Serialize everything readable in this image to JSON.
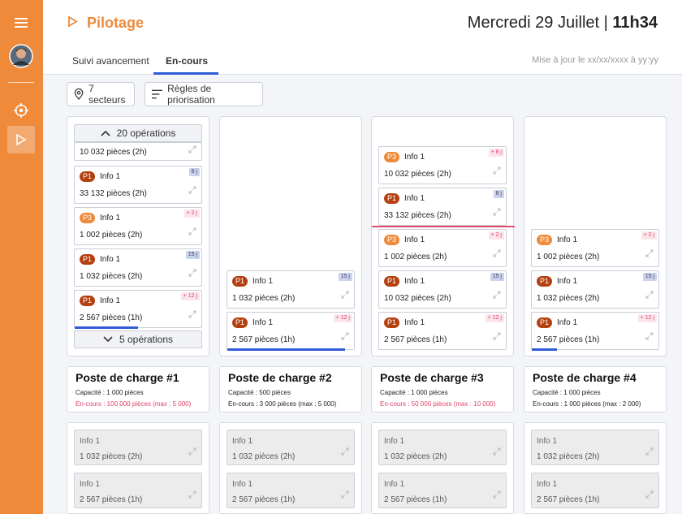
{
  "sidebar": {
    "items": [
      {
        "name": "menu-icon"
      },
      {
        "name": "avatar"
      },
      {
        "name": "target-icon"
      },
      {
        "name": "play-icon",
        "active": true
      }
    ]
  },
  "header": {
    "title": "Pilotage",
    "date": "Mercredi 29 Juillet | ",
    "time": "11h34",
    "tabs": [
      "Suivi avancement",
      "En-cours"
    ],
    "active_tab": "En-cours",
    "update_text": "Mise à jour le xx/xx/xxxx à yy:yy"
  },
  "filters": {
    "sectors": "7 secteurs",
    "rules": "Règles de priorisation"
  },
  "columns": [
    {
      "collapse_top": "20 opérations",
      "summary": "10 032 pièces (2h)",
      "cards": [
        {
          "priority": "P1",
          "info": "Info 1",
          "qty": "33 132 pièces (2h)",
          "tag": "8 j",
          "tag_type": "blue"
        },
        {
          "priority": "P3",
          "info": "Info 1",
          "qty": "1 002 pièces (2h)",
          "tag": "+ 2 j",
          "tag_type": "pink"
        },
        {
          "priority": "P1",
          "info": "Info 1",
          "qty": "1 032 pièces (2h)",
          "tag": "15 j",
          "tag_type": "blue"
        },
        {
          "priority": "P1",
          "info": "Info 1",
          "qty": "2 567 pièces (1h)",
          "tag": "+ 12 j",
          "tag_type": "pink",
          "progress": 0.5
        }
      ],
      "collapse_bottom": "5 opérations"
    },
    {
      "cards": [
        {
          "priority": "P1",
          "info": "Info 1",
          "qty": "1 032 pièces (2h)",
          "tag": "15 j",
          "tag_type": "blue"
        },
        {
          "priority": "P1",
          "info": "Info 1",
          "qty": "2 567 pièces (1h)",
          "tag": "+ 12 j",
          "tag_type": "pink",
          "progress": 0.93
        }
      ]
    },
    {
      "cards": [
        {
          "priority": "P3",
          "info": "Info 1",
          "qty": "10 032 pièces (2h)",
          "tag": "+ 8 j",
          "tag_type": "pink"
        },
        {
          "priority": "P1",
          "info": "Info 1",
          "qty": "33 132 pièces (2h)",
          "tag": "8 j",
          "tag_type": "blue"
        },
        {
          "priority": "P3",
          "info": "Info 1",
          "qty": "1 002 pièces (2h)",
          "tag": "+ 2 j",
          "tag_type": "pink"
        },
        {
          "priority": "P1",
          "info": "Info 1",
          "qty": "10 032 pièces (2h)",
          "tag": "15 j",
          "tag_type": "blue"
        },
        {
          "priority": "P1",
          "info": "Info 1",
          "qty": "2 567 pièces (1h)",
          "tag": "+ 12 j",
          "tag_type": "pink"
        }
      ]
    },
    {
      "cards": [
        {
          "priority": "P3",
          "info": "Info 1",
          "qty": "1 002 pièces (2h)",
          "tag": "+ 2 j",
          "tag_type": "pink"
        },
        {
          "priority": "P1",
          "info": "Info 1",
          "qty": "1 032 pièces (2h)",
          "tag": "15 j",
          "tag_type": "blue"
        },
        {
          "priority": "P1",
          "info": "Info 1",
          "qty": "2 567 pièces (1h)",
          "tag": "+ 12 j",
          "tag_type": "pink",
          "progress": 0.2
        }
      ]
    }
  ],
  "posts": [
    {
      "title": "Poste de charge #1",
      "capacity": "Capacité : 1 000 pièces",
      "encours": "En-cours : 100 000 pièces (max : 5 000)",
      "alert": true
    },
    {
      "title": "Poste de charge #2",
      "capacity": "Capacité : 500 pièces",
      "encours": "En-cours : 3 000 pièces (max : 5 000)",
      "alert": false
    },
    {
      "title": "Poste de charge #3",
      "capacity": "Capacité : 1 000 pièces",
      "encours": "En-cours : 50 000 pièces (max : 10 000)",
      "alert": true
    },
    {
      "title": "Poste de charge #4",
      "capacity": "Capacité : 1 000 pièces",
      "encours": "En-cours : 1 000 pièces (max : 2 000)",
      "alert": false
    }
  ],
  "bottom_cards": [
    {
      "info": "Info 1",
      "qty": "1 032 pièces (2h)"
    },
    {
      "info": "Info 1",
      "qty": "2 567 pièces (1h)"
    }
  ],
  "colors": {
    "accent": "#ee8a3a",
    "p1": "#b5400f",
    "alert": "#e0406a",
    "progress": "#2f5bd6"
  }
}
